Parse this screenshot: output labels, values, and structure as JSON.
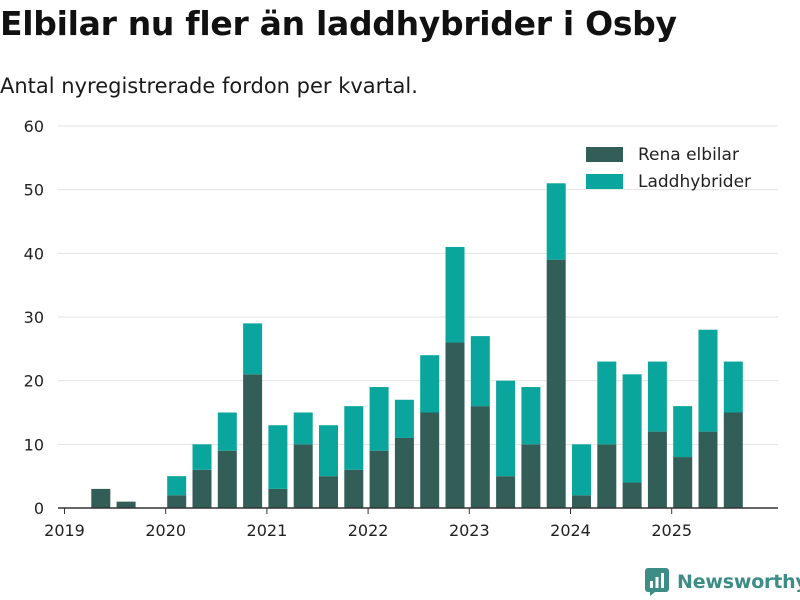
{
  "title": "Elbilar nu fler än laddhybrider i Osby",
  "subtitle": "Antal nyregistrerade fordon per kvartal.",
  "brand": "Newsworthy",
  "colors": {
    "electric": "#335e58",
    "hybrid": "#0aa69d",
    "grid": "#e3e3e3",
    "axis": "#333333",
    "text": "#222222",
    "brand": "#3d8d86"
  },
  "chart_data": {
    "type": "bar",
    "stacked": true,
    "title": "Elbilar nu fler än laddhybrider i Osby",
    "subtitle": "Antal nyregistrerade fordon per kvartal.",
    "xlabel": "",
    "ylabel": "",
    "ylim": [
      0,
      60
    ],
    "yticks": [
      0,
      10,
      20,
      30,
      40,
      50,
      60
    ],
    "grid": true,
    "legend_position": "top-right",
    "categories": [
      "2019 Q1",
      "2019 Q2",
      "2019 Q3",
      "2019 Q4",
      "2020 Q1",
      "2020 Q2",
      "2020 Q3",
      "2020 Q4",
      "2021 Q1",
      "2021 Q2",
      "2021 Q3",
      "2021 Q4",
      "2022 Q1",
      "2022 Q2",
      "2022 Q3",
      "2022 Q4",
      "2023 Q1",
      "2023 Q2",
      "2023 Q3",
      "2023 Q4",
      "2024 Q1",
      "2024 Q2",
      "2024 Q3",
      "2024 Q4",
      "2025 Q1",
      "2025 Q2",
      "2025 Q3"
    ],
    "x_tick_labels": [
      {
        "label": "2019",
        "index": 0
      },
      {
        "label": "2020",
        "index": 4
      },
      {
        "label": "2021",
        "index": 8
      },
      {
        "label": "2022",
        "index": 12
      },
      {
        "label": "2023",
        "index": 16
      },
      {
        "label": "2024",
        "index": 20
      },
      {
        "label": "2025",
        "index": 24
      }
    ],
    "series": [
      {
        "name": "Rena elbilar",
        "values": [
          0,
          3,
          1,
          0,
          2,
          6,
          9,
          21,
          3,
          10,
          5,
          6,
          9,
          11,
          15,
          26,
          16,
          5,
          10,
          39,
          2,
          10,
          4,
          12,
          8,
          12,
          15
        ]
      },
      {
        "name": "Laddhybrider",
        "values": [
          0,
          0,
          0,
          0,
          3,
          4,
          6,
          8,
          10,
          5,
          8,
          10,
          10,
          6,
          9,
          15,
          11,
          15,
          9,
          12,
          8,
          13,
          17,
          11,
          8,
          16,
          8
        ]
      }
    ]
  }
}
